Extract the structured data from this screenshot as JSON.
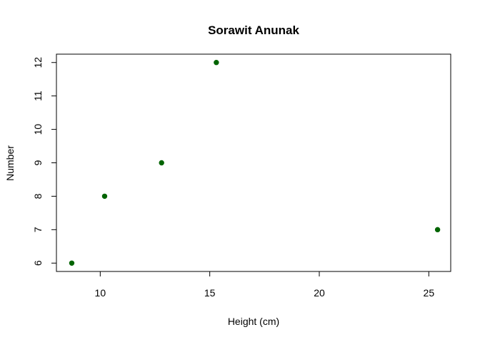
{
  "chart_data": {
    "type": "scatter",
    "title": "Sorawit Anunak",
    "xlabel": "Height (cm)",
    "ylabel": "Number",
    "xlim": [
      8.0,
      26.0
    ],
    "ylim": [
      5.75,
      12.25
    ],
    "x_ticks": [
      10,
      15,
      20,
      25
    ],
    "y_ticks": [
      6,
      7,
      8,
      9,
      10,
      11,
      12
    ],
    "grid": false,
    "series": [
      {
        "point_color": "#006400",
        "points": [
          {
            "x": 8.7,
            "y": 6
          },
          {
            "x": 10.2,
            "y": 8
          },
          {
            "x": 12.8,
            "y": 9
          },
          {
            "x": 15.3,
            "y": 12
          },
          {
            "x": 25.4,
            "y": 7
          }
        ]
      }
    ]
  }
}
